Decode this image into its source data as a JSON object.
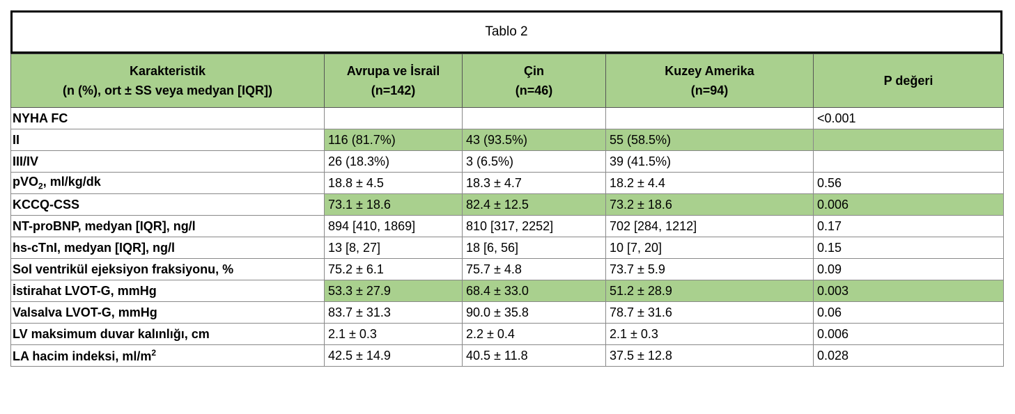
{
  "title": "Tablo 2",
  "header": {
    "col1_line1": "Karakteristik",
    "col1_line2": "(n (%), ort ± SS veya medyan [IQR])",
    "col2_line1": "Avrupa ve İsrail",
    "col2_line2": "(n=142)",
    "col3_line1": "Çin",
    "col3_line2": "(n=46)",
    "col4_line1": "Kuzey Amerika",
    "col4_line2": "(n=94)",
    "col5": "P değeri"
  },
  "rows": [
    {
      "label": "NYHA FC",
      "eu": "",
      "cn": "",
      "na": "",
      "p": "<0.001"
    },
    {
      "label": "II",
      "eu": "116 (81.7%)",
      "cn": "43 (93.5%)",
      "na": "55 (58.5%)",
      "p": ""
    },
    {
      "label": "III/IV",
      "eu": "26 (18.3%)",
      "cn": "3 (6.5%)",
      "na": "39 (41.5%)",
      "p": ""
    },
    {
      "label_pre": "pVO",
      "label_sub": "2",
      "label_post": ", ml/kg/dk",
      "eu": "18.8 ± 4.5",
      "cn": "18.3 ± 4.7",
      "na": "18.2 ± 4.4",
      "p": "0.56"
    },
    {
      "label": "KCCQ-CSS",
      "eu": "73.1 ± 18.6",
      "cn": "82.4 ± 12.5",
      "na": "73.2 ± 18.6",
      "p": "0.006"
    },
    {
      "label": "NT-proBNP, medyan [IQR], ng/l",
      "eu": "894 [410, 1869]",
      "cn": "810 [317, 2252]",
      "na": "702 [284, 1212]",
      "p": "0.17"
    },
    {
      "label": "hs-cTnI, medyan [IQR], ng/l",
      "eu": "13 [8, 27]",
      "cn": "18 [6, 56]",
      "na": "10 [7, 20]",
      "p": "0.15"
    },
    {
      "label": "Sol ventrikül ejeksiyon fraksiyonu, %",
      "eu": "75.2 ± 6.1",
      "cn": "75.7 ± 4.8",
      "na": "73.7 ± 5.9",
      "p": "0.09"
    },
    {
      "label": "İstirahat LVOT-G, mmHg",
      "eu": "53.3 ± 27.9",
      "cn": "68.4 ± 33.0",
      "na": "51.2 ± 28.9",
      "p": "0.003"
    },
    {
      "label": "Valsalva LVOT-G, mmHg",
      "eu": "83.7 ± 31.3",
      "cn": "90.0 ± 35.8",
      "na": "78.7 ± 31.6",
      "p": "0.06"
    },
    {
      "label": "LV maksimum duvar kalınlığı, cm",
      "eu": "2.1 ± 0.3",
      "cn": "2.2 ± 0.4",
      "na": "2.1 ± 0.3",
      "p": "0.006"
    },
    {
      "label_pre": "LA hacim indeksi, ml/m",
      "label_sup": "2",
      "eu": "42.5 ± 14.9",
      "cn": "40.5 ± 11.8",
      "na": "37.5 ± 12.8",
      "p": "0.028"
    }
  ],
  "colors": {
    "header_fill": "#a9d08e",
    "highlight_fill": "#a9d08e"
  }
}
